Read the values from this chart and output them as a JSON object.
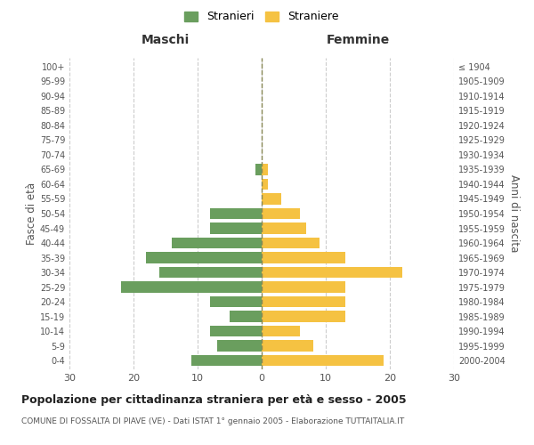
{
  "age_groups": [
    "0-4",
    "5-9",
    "10-14",
    "15-19",
    "20-24",
    "25-29",
    "30-34",
    "35-39",
    "40-44",
    "45-49",
    "50-54",
    "55-59",
    "60-64",
    "65-69",
    "70-74",
    "75-79",
    "80-84",
    "85-89",
    "90-94",
    "95-99",
    "100+"
  ],
  "birth_years": [
    "2000-2004",
    "1995-1999",
    "1990-1994",
    "1985-1989",
    "1980-1984",
    "1975-1979",
    "1970-1974",
    "1965-1969",
    "1960-1964",
    "1955-1959",
    "1950-1954",
    "1945-1949",
    "1940-1944",
    "1935-1939",
    "1930-1934",
    "1925-1929",
    "1920-1924",
    "1915-1919",
    "1910-1914",
    "1905-1909",
    "≤ 1904"
  ],
  "males": [
    11,
    7,
    8,
    5,
    8,
    22,
    16,
    18,
    14,
    8,
    8,
    0,
    0,
    1,
    0,
    0,
    0,
    0,
    0,
    0,
    0
  ],
  "females": [
    19,
    8,
    6,
    13,
    13,
    13,
    22,
    13,
    9,
    7,
    6,
    3,
    1,
    1,
    0,
    0,
    0,
    0,
    0,
    0,
    0
  ],
  "male_color": "#6a9e5e",
  "female_color": "#f5c242",
  "male_label": "Stranieri",
  "female_label": "Straniere",
  "title": "Popolazione per cittadinanza straniera per età e sesso - 2005",
  "subtitle": "COMUNE DI FOSSALTA DI PIAVE (VE) - Dati ISTAT 1° gennaio 2005 - Elaborazione TUTTAITALIA.IT",
  "xlabel_left": "Maschi",
  "xlabel_right": "Femmine",
  "ylabel_left": "Fasce di età",
  "ylabel_right": "Anni di nascita",
  "xlim": 30,
  "background_color": "#ffffff",
  "grid_color": "#cccccc"
}
